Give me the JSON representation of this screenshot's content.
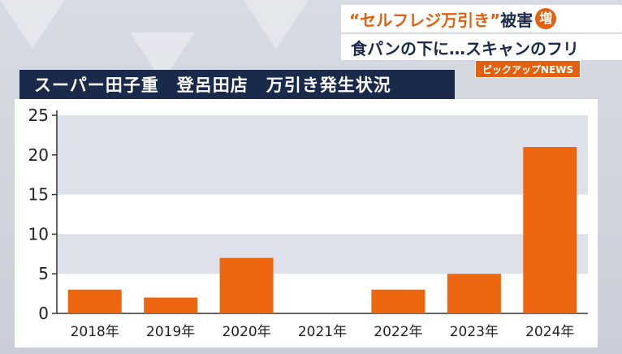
{
  "banner": {
    "line1_quote": "“セルフレジ万引き”",
    "line1_text": "被害",
    "line1_badge": "増",
    "line2": "食パンの下に…スキャンのフリ",
    "tag": "ピックアップNEWS"
  },
  "colors": {
    "bar": "#ee650f",
    "navy": "#1b2a4a",
    "band": "#dde1ea"
  },
  "chart_data": {
    "type": "bar",
    "title": "スーパー田子重　登呂田店　万引き発生状況",
    "categories": [
      "2018年",
      "2019年",
      "2020年",
      "2021年",
      "2022年",
      "2023年",
      "2024年"
    ],
    "values": [
      3,
      2,
      7,
      0,
      3,
      5,
      21
    ],
    "ylim": [
      0,
      25
    ],
    "yticks": [
      0,
      5,
      10,
      15,
      20,
      25
    ],
    "grid": "alternating horizontal bands"
  }
}
